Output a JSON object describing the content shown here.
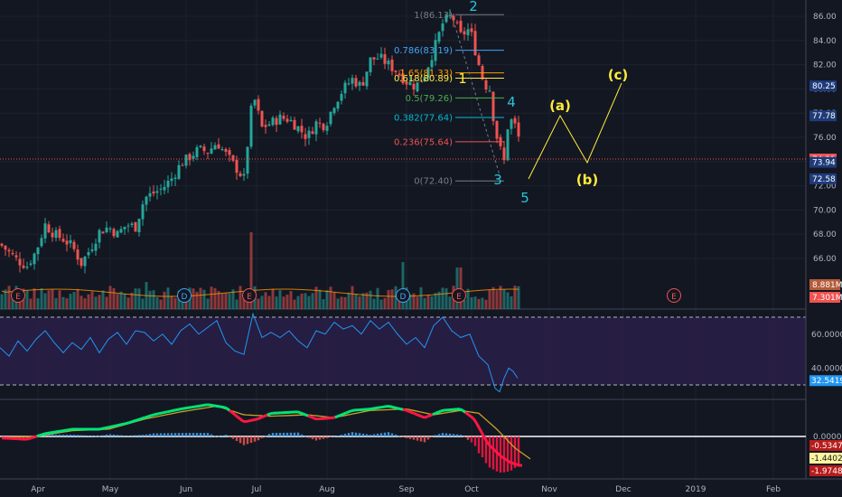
{
  "chart_data": {
    "type": "candlestick",
    "price_axis": {
      "ticks": [
        "86.00",
        "84.00",
        "82.00",
        "80.00",
        "78.00",
        "76.00",
        "74.00",
        "72.00",
        "70.00",
        "68.00",
        "66.00"
      ],
      "range": [
        64.7,
        87.6
      ]
    },
    "months": [
      {
        "label": "Apr",
        "x": 42
      },
      {
        "label": "May",
        "x": 122
      },
      {
        "label": "Jun",
        "x": 206
      },
      {
        "label": "Jul",
        "x": 284
      },
      {
        "label": "Aug",
        "x": 362
      },
      {
        "label": "Sep",
        "x": 450
      },
      {
        "label": "Oct",
        "x": 522
      },
      {
        "label": "Nov",
        "x": 608
      },
      {
        "label": "Dec",
        "x": 690
      },
      {
        "label": "2019",
        "x": 770
      },
      {
        "label": "Feb",
        "x": 856
      }
    ],
    "price_anchors": [
      [
        0,
        67.2
      ],
      [
        10,
        66.5
      ],
      [
        20,
        65.8
      ],
      [
        30,
        65.4
      ],
      [
        40,
        66.6
      ],
      [
        50,
        68.8
      ],
      [
        60,
        68.0
      ],
      [
        70,
        67.6
      ],
      [
        80,
        67.0
      ],
      [
        90,
        65.6
      ],
      [
        100,
        66.8
      ],
      [
        110,
        68.2
      ],
      [
        120,
        68.6
      ],
      [
        130,
        68.0
      ],
      [
        140,
        68.8
      ],
      [
        150,
        68.6
      ],
      [
        160,
        71.0
      ],
      [
        170,
        71.4
      ],
      [
        180,
        71.8
      ],
      [
        190,
        72.6
      ],
      [
        200,
        73.8
      ],
      [
        210,
        74.4
      ],
      [
        220,
        75.0
      ],
      [
        230,
        74.8
      ],
      [
        240,
        75.6
      ],
      [
        250,
        74.6
      ],
      [
        260,
        73.6
      ],
      [
        270,
        72.6
      ],
      [
        280,
        79.6
      ],
      [
        290,
        76.8
      ],
      [
        300,
        77.2
      ],
      [
        310,
        77.6
      ],
      [
        320,
        77.5
      ],
      [
        330,
        76.8
      ],
      [
        340,
        76.0
      ],
      [
        350,
        77.2
      ],
      [
        360,
        77.0
      ],
      [
        370,
        78.8
      ],
      [
        380,
        80.0
      ],
      [
        390,
        80.8
      ],
      [
        400,
        80.2
      ],
      [
        410,
        82.4
      ],
      [
        420,
        82.6
      ],
      [
        430,
        82.0
      ],
      [
        440,
        81.4
      ],
      [
        450,
        80.6
      ],
      [
        460,
        80.2
      ],
      [
        470,
        81.2
      ],
      [
        480,
        83.2
      ],
      [
        490,
        85.4
      ],
      [
        500,
        86.1
      ],
      [
        510,
        84.4
      ],
      [
        520,
        85.0
      ],
      [
        530,
        82.0
      ],
      [
        536,
        80.4
      ],
      [
        542,
        80.0
      ],
      [
        548,
        76.6
      ],
      [
        553,
        75.2
      ],
      [
        558,
        74.0
      ],
      [
        563,
        77.6
      ],
      [
        568,
        77.2
      ],
      [
        573,
        76.6
      ],
      [
        576,
        74.8
      ]
    ],
    "last_price": "74.21",
    "price_tags": [
      {
        "label": "80.25",
        "value": 80.25,
        "color": "#1f3b7a"
      },
      {
        "label": "77.78",
        "value": 77.78,
        "color": "#1f3b7a"
      },
      {
        "label": "74.21",
        "value": 74.21,
        "color": "#ef5350"
      },
      {
        "label": "73.94",
        "value": 73.94,
        "color": "#1f3b7a"
      },
      {
        "label": "72.58",
        "value": 72.58,
        "color": "#1f3b7a"
      }
    ],
    "fib_levels": [
      {
        "label": "1(86.13)",
        "value": 86.13,
        "color": "#787b86"
      },
      {
        "label": "0.786(83.19)",
        "value": 83.19,
        "color": "#42a5f5"
      },
      {
        "label": "1.65(81.33)",
        "value": 81.33,
        "color": "#ff9800"
      },
      {
        "label": "0.618(80.89)",
        "value": 80.89,
        "color": "#ffeb3b"
      },
      {
        "label": "0.5(79.26)",
        "value": 79.26,
        "color": "#4caf50"
      },
      {
        "label": "0.382(77.64)",
        "value": 77.64,
        "color": "#00bcd4"
      },
      {
        "label": "0.236(75.64)",
        "value": 75.64,
        "color": "#ef5350"
      },
      {
        "label": "0(72.40)",
        "value": 72.4,
        "color": "#787b86"
      }
    ],
    "wave_labels": [
      {
        "text": "2",
        "x": 524,
        "y": 6,
        "color": "#26c6da"
      },
      {
        "text": "1",
        "x": 512,
        "y": 86,
        "color": "#ffeb3b"
      },
      {
        "text": "4",
        "x": 566,
        "y": 112,
        "color": "#26c6da"
      },
      {
        "text": "3",
        "x": 551,
        "y": 198,
        "color": "#26c6da"
      },
      {
        "text": "5",
        "x": 581,
        "y": 218,
        "color": "#26c6da"
      },
      {
        "text": "(a)",
        "x": 620,
        "y": 116,
        "color": "#ffeb3b"
      },
      {
        "text": "(b)",
        "x": 650,
        "y": 198,
        "color": "#ffeb3b"
      },
      {
        "text": "(c)",
        "x": 684,
        "y": 82,
        "color": "#ffeb3b"
      }
    ],
    "projection_path": [
      [
        585,
        198
      ],
      [
        620,
        128
      ],
      [
        650,
        180
      ],
      [
        688,
        92
      ]
    ],
    "event_markers": [
      {
        "text": "E",
        "x": 20
      },
      {
        "text": "D",
        "x": 204
      },
      {
        "text": "E",
        "x": 276
      },
      {
        "text": "D",
        "x": 446
      },
      {
        "text": "E",
        "x": 508
      },
      {
        "text": "E",
        "x": 746
      }
    ],
    "volume_tags": [
      {
        "label": "8.881M",
        "color": "#b55b3a"
      },
      {
        "label": "7.301M",
        "color": "#ef5350"
      }
    ],
    "rsi": {
      "ticks": [
        "60.0000",
        "40.0000"
      ],
      "value_tag": "32.5419",
      "upper": 70,
      "lower": 30,
      "anchors": [
        [
          0,
          52
        ],
        [
          10,
          47
        ],
        [
          20,
          56
        ],
        [
          30,
          50
        ],
        [
          40,
          57
        ],
        [
          50,
          62
        ],
        [
          60,
          55
        ],
        [
          70,
          49
        ],
        [
          80,
          55
        ],
        [
          90,
          51
        ],
        [
          100,
          58
        ],
        [
          110,
          49
        ],
        [
          120,
          57
        ],
        [
          130,
          61
        ],
        [
          140,
          54
        ],
        [
          150,
          62
        ],
        [
          160,
          61
        ],
        [
          170,
          56
        ],
        [
          180,
          60
        ],
        [
          190,
          54
        ],
        [
          200,
          62
        ],
        [
          210,
          66
        ],
        [
          220,
          60
        ],
        [
          230,
          64
        ],
        [
          240,
          68
        ],
        [
          250,
          55
        ],
        [
          260,
          50
        ],
        [
          270,
          48
        ],
        [
          280,
          72
        ],
        [
          290,
          58
        ],
        [
          300,
          61
        ],
        [
          310,
          58
        ],
        [
          320,
          62
        ],
        [
          330,
          56
        ],
        [
          340,
          52
        ],
        [
          350,
          62
        ],
        [
          360,
          60
        ],
        [
          370,
          67
        ],
        [
          380,
          63
        ],
        [
          390,
          65
        ],
        [
          400,
          60
        ],
        [
          410,
          68
        ],
        [
          420,
          63
        ],
        [
          430,
          67
        ],
        [
          440,
          60
        ],
        [
          450,
          54
        ],
        [
          460,
          58
        ],
        [
          470,
          52
        ],
        [
          480,
          65
        ],
        [
          490,
          70
        ],
        [
          500,
          62
        ],
        [
          510,
          58
        ],
        [
          520,
          60
        ],
        [
          530,
          47
        ],
        [
          540,
          42
        ],
        [
          548,
          28
        ],
        [
          553,
          26
        ],
        [
          558,
          34
        ],
        [
          563,
          40
        ],
        [
          568,
          38
        ],
        [
          573,
          34
        ]
      ]
    },
    "macd": {
      "ticks": [
        "0.0000"
      ],
      "value_tags": [
        {
          "label": "-0.5347",
          "color": "#b71c1c"
        },
        {
          "label": "-1.4402",
          "color": "#fff59d"
        },
        {
          "label": "-1.9748",
          "color": "#b71c1c"
        }
      ]
    }
  }
}
